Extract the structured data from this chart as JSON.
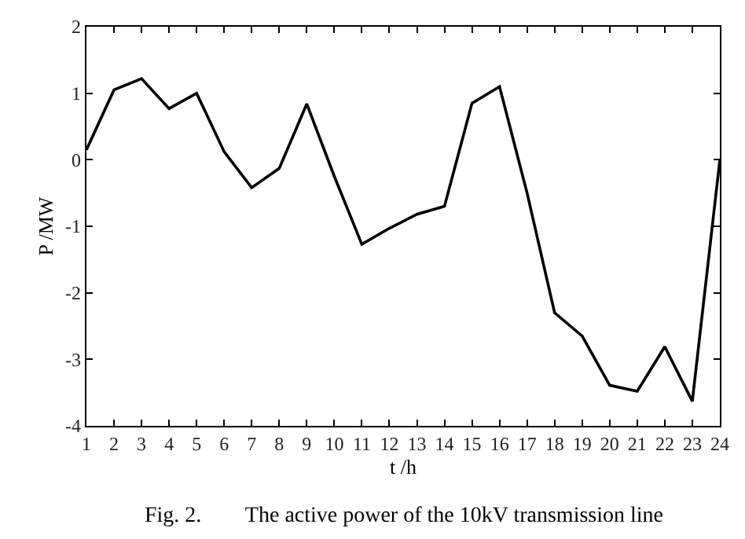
{
  "chart_data": {
    "type": "line",
    "xlabel": "t /h",
    "ylabel": "P /MW",
    "annotations": [
      "Fig. 2.        The active power of the 10kV transmission line"
    ],
    "x": [
      1,
      2,
      3,
      4,
      5,
      6,
      7,
      8,
      9,
      10,
      11,
      12,
      13,
      14,
      15,
      16,
      17,
      18,
      19,
      20,
      21,
      22,
      23,
      24
    ],
    "series": [
      {
        "color": "#000000",
        "values": [
          0.15,
          1.05,
          1.22,
          0.77,
          1.0,
          0.12,
          -0.42,
          -0.13,
          0.84,
          -0.25,
          -1.27,
          -1.03,
          -0.82,
          -0.7,
          0.85,
          1.1,
          -0.5,
          -2.3,
          -2.65,
          -3.39,
          -3.48,
          -2.81,
          -3.63,
          0
        ]
      }
    ],
    "xlim": [
      1,
      24
    ],
    "xticks": [
      1,
      2,
      3,
      4,
      5,
      6,
      7,
      8,
      9,
      10,
      11,
      12,
      13,
      14,
      15,
      16,
      17,
      18,
      19,
      20,
      21,
      22,
      23,
      24
    ],
    "ylim": [
      -4,
      2
    ],
    "yticks": [
      -4,
      -3,
      -2,
      -1,
      0,
      1,
      2
    ],
    "legend": false,
    "marker": "none",
    "line_style": "solid"
  }
}
